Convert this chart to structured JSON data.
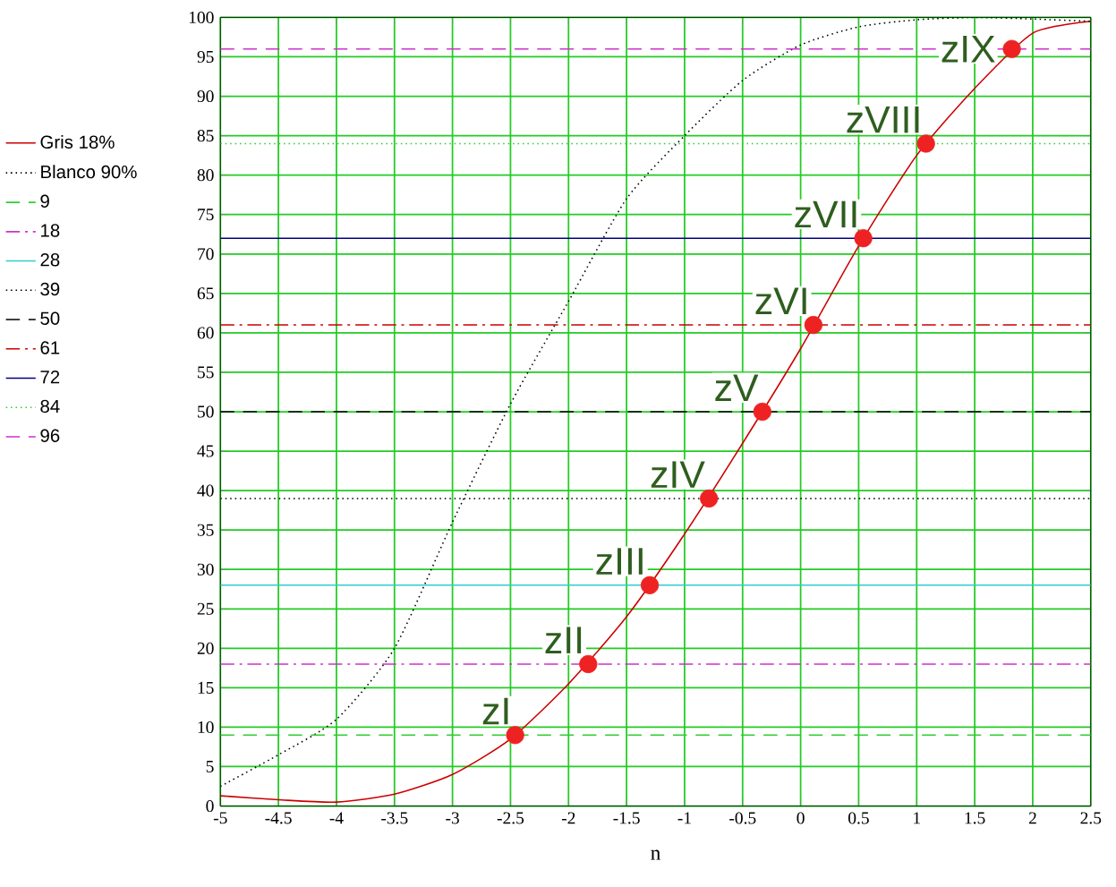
{
  "chart_data": {
    "type": "line",
    "xlabel": "n",
    "xlim": [
      -5,
      2.5
    ],
    "ylim": [
      0,
      100
    ],
    "xticks": [
      -5,
      -4.5,
      -4,
      -3.5,
      -3,
      -2.5,
      -2,
      -1.5,
      -1,
      -0.5,
      0,
      0.5,
      1,
      1.5,
      2,
      2.5
    ],
    "yticks": [
      0,
      5,
      10,
      15,
      20,
      25,
      30,
      35,
      40,
      45,
      50,
      55,
      60,
      65,
      70,
      75,
      80,
      85,
      90,
      95,
      100
    ],
    "grid": true,
    "legend": "left",
    "series": [
      {
        "name": "Gris 18%",
        "color": "#cc0000",
        "line_style": "solid",
        "x": [
          -5,
          -4.5,
          -4,
          -3.5,
          -3,
          -2.5,
          -2,
          -1.5,
          -1,
          -0.5,
          0,
          0.5,
          1,
          1.5,
          2,
          2.5
        ],
        "values": [
          1.3,
          0.8,
          0.5,
          1.5,
          4,
          8.5,
          15.5,
          24,
          34.5,
          46,
          58,
          71,
          82.5,
          91,
          98,
          99.5
        ]
      },
      {
        "name": "Blanco 90%",
        "color": "#000000",
        "line_style": "dotted",
        "x": [
          -5,
          -4.5,
          -4,
          -3.5,
          -3,
          -2.5,
          -2,
          -1.5,
          -1,
          -0.5,
          0,
          0.5,
          1,
          1.5,
          2,
          2.5
        ],
        "values": [
          2.5,
          6.5,
          11,
          20,
          36,
          51,
          64,
          77,
          85,
          92,
          96.5,
          98.8,
          99.7,
          100,
          99.8,
          99.5
        ]
      },
      {
        "name": "9",
        "color": "#33cc33",
        "line_style": "dashed",
        "x": [
          -5,
          2.5
        ],
        "values": [
          9,
          9
        ]
      },
      {
        "name": "18",
        "color": "#cc33cc",
        "line_style": "dashdot",
        "x": [
          -5,
          2.5
        ],
        "values": [
          18,
          18
        ]
      },
      {
        "name": "28",
        "color": "#33cccc",
        "line_style": "solid",
        "x": [
          -5,
          2.5
        ],
        "values": [
          28,
          28
        ]
      },
      {
        "name": "39",
        "color": "#000000",
        "line_style": "dotted",
        "x": [
          -5,
          2.5
        ],
        "values": [
          39,
          39
        ]
      },
      {
        "name": "50",
        "color": "#000000",
        "line_style": "dashed",
        "x": [
          -5,
          2.5
        ],
        "values": [
          50,
          50
        ]
      },
      {
        "name": "61",
        "color": "#cc0000",
        "line_style": "dashdot",
        "x": [
          -5,
          2.5
        ],
        "values": [
          61,
          61
        ]
      },
      {
        "name": "72",
        "color": "#000080",
        "line_style": "solid",
        "x": [
          -5,
          2.5
        ],
        "values": [
          72,
          72
        ]
      },
      {
        "name": "84",
        "color": "#33cc33",
        "line_style": "dotted",
        "x": [
          -5,
          2.5
        ],
        "values": [
          84,
          84
        ]
      },
      {
        "name": "96",
        "color": "#cc33cc",
        "line_style": "dashed",
        "x": [
          -5,
          2.5
        ],
        "values": [
          96,
          96
        ]
      },
      {
        "type": "scatter",
        "color": "#ee2222",
        "marker": "circle",
        "x": [
          -2.46,
          -1.83,
          -1.3,
          -0.79,
          -0.33,
          0.11,
          0.54,
          1.08,
          1.82
        ],
        "values": [
          9,
          18,
          28,
          39,
          50,
          61,
          72,
          84,
          96
        ]
      }
    ],
    "annotations": [
      {
        "text": "zI",
        "x": -2.46,
        "y": 9
      },
      {
        "text": "zII",
        "x": -1.83,
        "y": 18
      },
      {
        "text": "zIII",
        "x": -1.3,
        "y": 28
      },
      {
        "text": "zIV",
        "x": -0.79,
        "y": 39
      },
      {
        "text": "zV",
        "x": -0.33,
        "y": 50
      },
      {
        "text": "zVI",
        "x": 0.11,
        "y": 61
      },
      {
        "text": "zVII",
        "x": 0.54,
        "y": 72
      },
      {
        "text": "zVIII",
        "x": 1.08,
        "y": 84
      },
      {
        "text": "zIX",
        "x": 1.82,
        "y": 96
      }
    ]
  }
}
